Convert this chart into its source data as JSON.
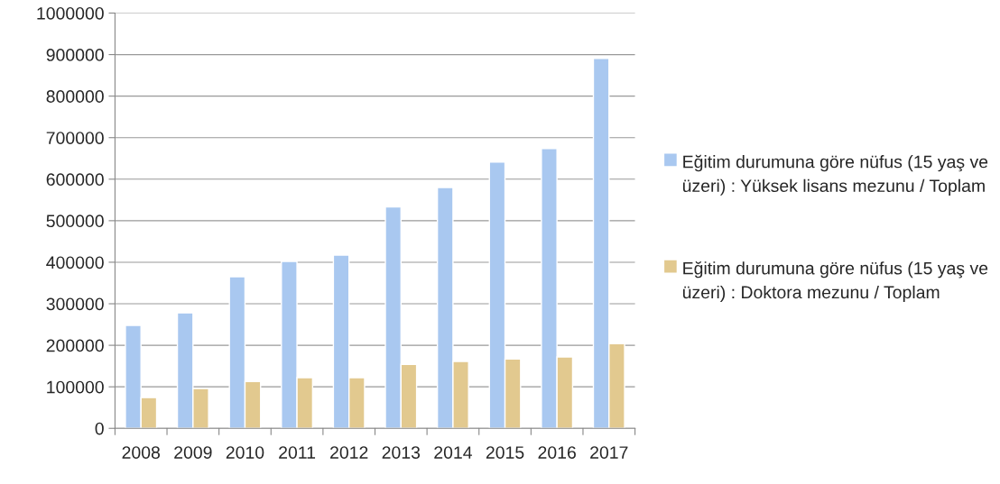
{
  "chart_data": {
    "type": "bar",
    "categories": [
      "2008",
      "2009",
      "2010",
      "2011",
      "2012",
      "2013",
      "2014",
      "2015",
      "2016",
      "2017"
    ],
    "series": [
      {
        "name": "Eğitim durumuna göre nüfus (15 yaş ve üzeri) : Yüksek lisans mezunu / Toplam",
        "color": "#a9c8f0",
        "values": [
          248000,
          278000,
          365000,
          402000,
          417000,
          533000,
          580000,
          641000,
          674000,
          891000
        ]
      },
      {
        "name": "Eğitim durumuna göre nüfus (15 yaş ve üzeri) : Doktora mezunu / Toplam",
        "color": "#e2c98f",
        "values": [
          74000,
          96000,
          113000,
          122000,
          122000,
          154000,
          161000,
          167000,
          172000,
          204000
        ]
      }
    ],
    "ylim": [
      0,
      1000000
    ],
    "yticks": [
      0,
      100000,
      200000,
      300000,
      400000,
      500000,
      600000,
      700000,
      800000,
      900000,
      1000000
    ],
    "grid": "y",
    "legend": "right"
  }
}
